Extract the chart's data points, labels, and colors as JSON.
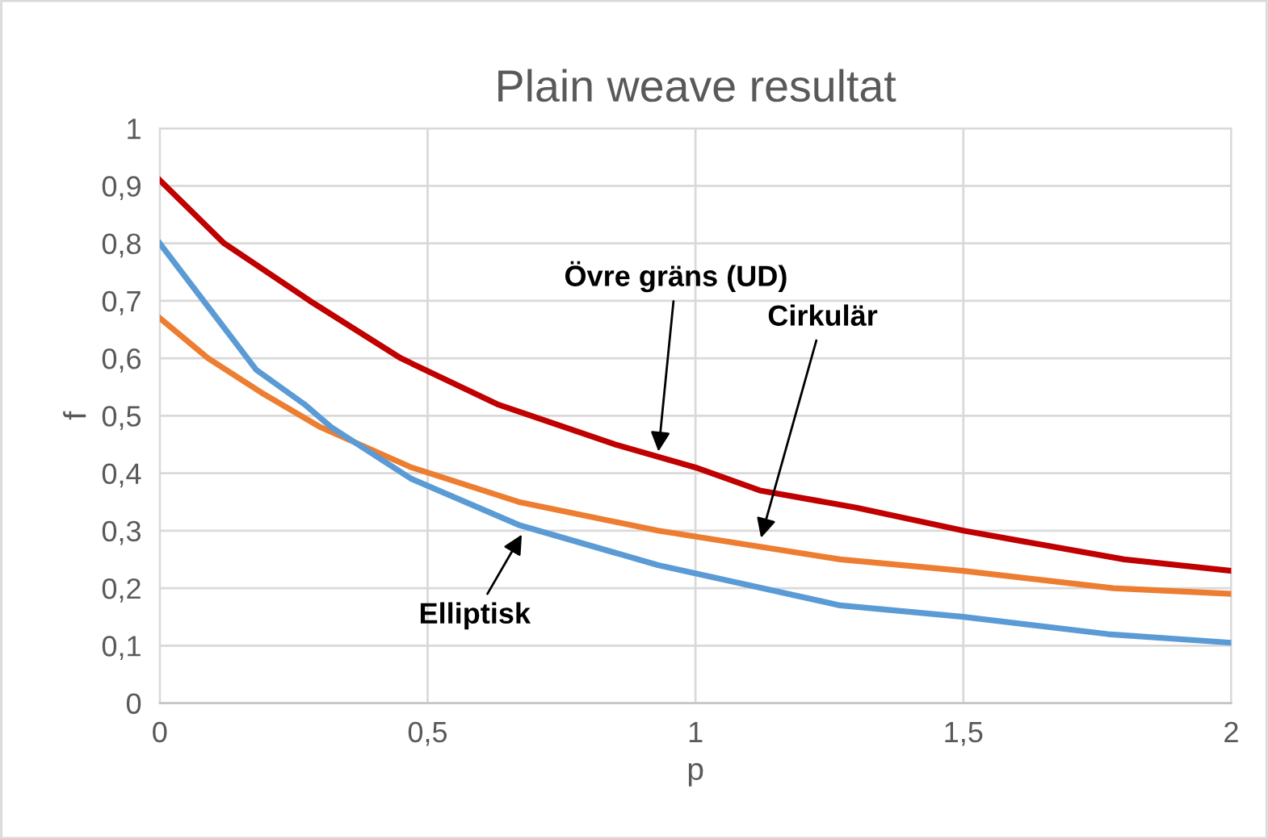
{
  "chart_data": {
    "type": "line",
    "title": "Plain weave resultat",
    "xlabel": "p",
    "ylabel": "f",
    "xlim": [
      0,
      2
    ],
    "ylim": [
      0,
      1
    ],
    "xticks": [
      0,
      {
        "value": 0.5,
        "label": "0,5"
      },
      1,
      {
        "value": 1.5,
        "label": "1,5"
      },
      2
    ],
    "yticks": [
      0,
      {
        "value": 0.1,
        "label": "0,1"
      },
      {
        "value": 0.2,
        "label": "0,2"
      },
      {
        "value": 0.3,
        "label": "0,3"
      },
      {
        "value": 0.4,
        "label": "0,4"
      },
      {
        "value": 0.5,
        "label": "0,5"
      },
      {
        "value": 0.6,
        "label": "0,6"
      },
      {
        "value": 0.7,
        "label": "0,7"
      },
      {
        "value": 0.8,
        "label": "0,8"
      },
      {
        "value": 0.9,
        "label": "0,9"
      },
      1
    ],
    "grid": true,
    "marker": "none",
    "line_style": "solid",
    "series": [
      {
        "color": "#c00000",
        "x": [
          0,
          0.12,
          0.28,
          0.45,
          0.63,
          0.85,
          1.0,
          1.12,
          1.3,
          1.5,
          1.8,
          2
        ],
        "values": [
          0.91,
          0.8,
          0.7,
          0.6,
          0.52,
          0.45,
          0.41,
          0.37,
          0.34,
          0.3,
          0.25,
          0.23
        ]
      },
      {
        "color": "#ed7d31",
        "x": [
          0,
          0.09,
          0.19,
          0.3,
          0.47,
          0.67,
          0.93,
          1.27,
          1.5,
          1.78,
          2
        ],
        "values": [
          0.67,
          0.6,
          0.54,
          0.48,
          0.41,
          0.35,
          0.3,
          0.25,
          0.23,
          0.2,
          0.19
        ]
      },
      {
        "color": "#5b9bd5",
        "x": [
          0,
          0.09,
          0.18,
          0.27,
          0.32,
          0.47,
          0.67,
          0.93,
          1.27,
          1.5,
          1.77,
          2
        ],
        "values": [
          0.8,
          0.69,
          0.58,
          0.52,
          0.48,
          0.39,
          0.31,
          0.24,
          0.17,
          0.15,
          0.12,
          0.105
        ]
      }
    ],
    "annotations": [
      {
        "text": "Övre gräns (UD)",
        "x": 0.93,
        "y": 0.43
      },
      {
        "text": "Cirkulär",
        "x": 1.12,
        "y": 0.28
      },
      {
        "text": "Elliptisk",
        "x": 0.68,
        "y": 0.3
      }
    ]
  }
}
